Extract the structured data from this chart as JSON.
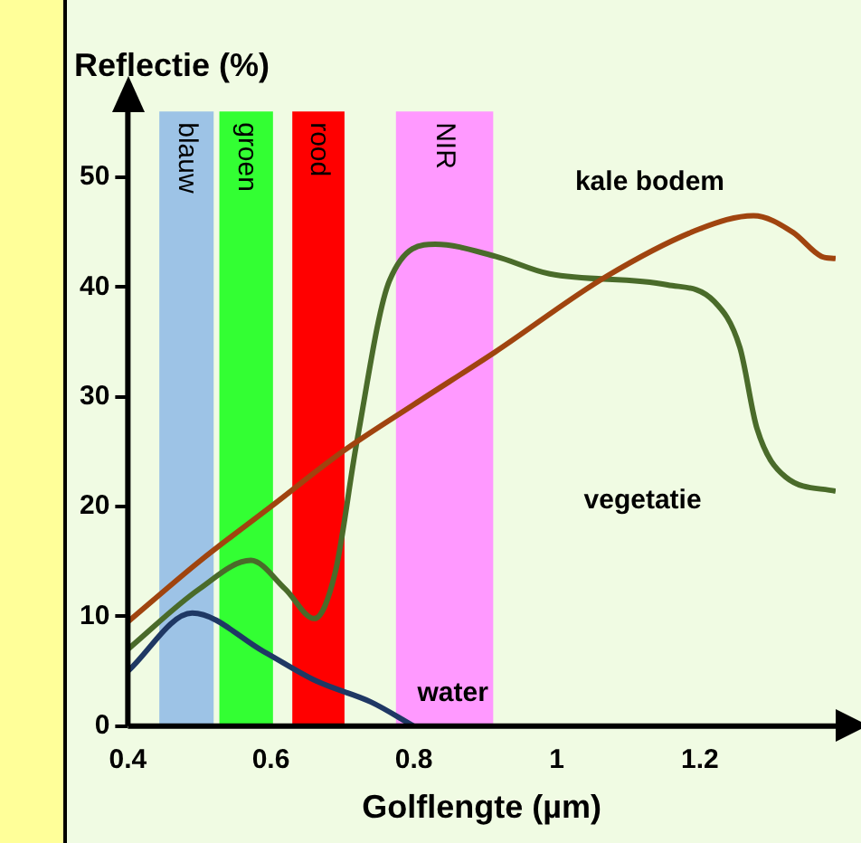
{
  "chart_data": {
    "type": "line",
    "title": "Reflectie (%)",
    "xlabel": "Golflengte (µm)",
    "xlim": [
      0.4,
      1.39
    ],
    "ylim": [
      0,
      56
    ],
    "xticks": [
      0.4,
      0.6,
      0.8,
      {
        "value": 1,
        "label": "1"
      },
      1.2
    ],
    "yticks": [
      0,
      10,
      20,
      30,
      40,
      50
    ],
    "grid": false,
    "legend": false,
    "marker": "none",
    "line_style": "solid",
    "series": [
      {
        "name": "kale bodem",
        "color": "#a0440f",
        "x": [
          0.4,
          0.5,
          0.6,
          0.7,
          0.8,
          0.914,
          1.07,
          1.2,
          1.275,
          1.33,
          1.37,
          1.39
        ],
        "values": [
          9.5,
          15,
          20,
          25,
          29.3,
          34.1,
          41,
          45.3,
          46.5,
          45,
          42.8,
          42.6
        ]
      },
      {
        "name": "vegetatie",
        "color": "#4a6b2a",
        "x": [
          0.4,
          0.5,
          0.572,
          0.62,
          0.661,
          0.69,
          0.72,
          0.766,
          0.83,
          0.914,
          0.99,
          1.155,
          1.22,
          1.256,
          1.28,
          1.32,
          1.39
        ],
        "values": [
          7,
          12.5,
          15.1,
          12.5,
          9.8,
          14,
          25.8,
          40.6,
          43.9,
          42.8,
          41.2,
          40.2,
          38.7,
          34.5,
          27.1,
          22.7,
          21.4
        ]
      },
      {
        "name": "water",
        "color": "#1f3864",
        "x": [
          0.4,
          0.49,
          0.59,
          0.664,
          0.74,
          0.8
        ],
        "values": [
          5,
          10.3,
          6.8,
          4.1,
          2.2,
          0
        ]
      }
    ],
    "bands": [
      {
        "axis": "x",
        "from": 0.444,
        "to": 0.52,
        "label": "blauw",
        "color": "#9dc3e6"
      },
      {
        "axis": "x",
        "from": 0.528,
        "to": 0.603,
        "label": "groen",
        "color": "#33ff33"
      },
      {
        "axis": "x",
        "from": 0.63,
        "to": 0.703,
        "label": "rood",
        "color": "#ff0000"
      },
      {
        "axis": "x",
        "from": 0.775,
        "to": 0.911,
        "label": "NIR",
        "color": "#ff99ff"
      }
    ]
  }
}
